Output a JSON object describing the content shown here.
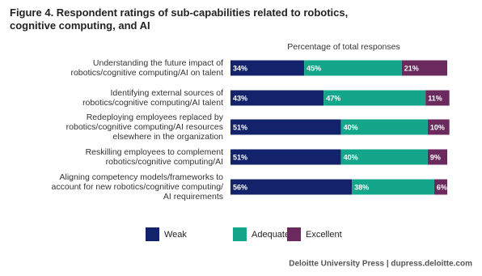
{
  "chart_data": {
    "type": "stacked-bar-horizontal",
    "title": "Figure 4. Respondent ratings of sub-capabilities related to robotics, cognitive computing, and AI",
    "subtitle": "Percentage of total responses",
    "categories": [
      [
        "Understanding the future impact of",
        "robotics/cognitive computing/AI on talent"
      ],
      [
        "Identifying external sources of",
        "robotics/cognitive computing/AI talent"
      ],
      [
        "Redeploying employees replaced by",
        "robotics/cognitive computing/AI resources",
        "elsewhere in the organization"
      ],
      [
        "Reskilling employees to complement",
        "robotics/cognitive computing/AI"
      ],
      [
        "Aligning competency models/frameworks to",
        "account for new robotics/cognitive computing/",
        "AI requirements"
      ]
    ],
    "series": [
      {
        "name": "Weak",
        "color": "#13236b",
        "values": [
          34,
          43,
          51,
          51,
          56
        ],
        "value_labels": [
          "34%",
          "43%",
          "51%",
          "51%",
          "56%"
        ]
      },
      {
        "name": "Adequate",
        "color": "#14a68a",
        "values": [
          45,
          47,
          40,
          40,
          38
        ],
        "value_labels": [
          "45%",
          "47%",
          "40%",
          "40%",
          "38%"
        ]
      },
      {
        "name": "Excellent",
        "color": "#6a2a5e",
        "values": [
          21,
          11,
          10,
          9,
          6
        ],
        "value_labels": [
          "21%",
          "11%",
          "10%",
          "9%",
          "6%"
        ]
      }
    ],
    "xlim": [
      0,
      100
    ],
    "source": "Deloitte University Press  |  dupress.deloitte.com"
  }
}
